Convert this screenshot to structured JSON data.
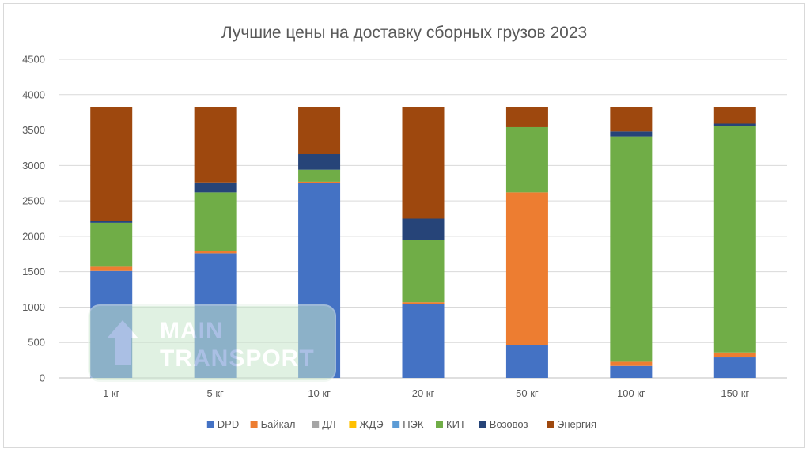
{
  "chart_data": {
    "type": "bar",
    "stacked": true,
    "title": "Лучшие цены на доставку сборных грузов 2023",
    "xlabel": "",
    "ylabel": "",
    "ylim": [
      0,
      4500
    ],
    "y_ticks": [
      0,
      500,
      1000,
      1500,
      2000,
      2500,
      3000,
      3500,
      4000,
      4500
    ],
    "categories": [
      "1 кг",
      "5 кг",
      "10 кг",
      "20 кг",
      "50 кг",
      "100 кг",
      "150 кг"
    ],
    "grid": true,
    "legend_position": "bottom",
    "series": [
      {
        "name": "DPD",
        "color": "#4472c4",
        "values": [
          1510,
          1760,
          2750,
          1040,
          460,
          170,
          290
        ]
      },
      {
        "name": "Байкал",
        "color": "#ed7d31",
        "values": [
          60,
          30,
          20,
          30,
          2160,
          60,
          70
        ]
      },
      {
        "name": "ДЛ",
        "color": "#a5a5a5",
        "values": [
          0,
          0,
          0,
          0,
          0,
          0,
          0
        ]
      },
      {
        "name": "ЖДЭ",
        "color": "#ffc000",
        "values": [
          0,
          0,
          0,
          0,
          0,
          0,
          0
        ]
      },
      {
        "name": "ПЭК",
        "color": "#5b9bd5",
        "values": [
          0,
          0,
          0,
          0,
          0,
          0,
          0
        ]
      },
      {
        "name": "КИТ",
        "color": "#70ad47",
        "values": [
          620,
          830,
          170,
          880,
          920,
          3180,
          3200
        ]
      },
      {
        "name": "Возовоз",
        "color": "#264478",
        "values": [
          30,
          140,
          220,
          300,
          0,
          70,
          30
        ]
      },
      {
        "name": "Энергия",
        "color": "#9e480e",
        "values": [
          1610,
          1070,
          670,
          1580,
          290,
          350,
          240
        ]
      }
    ]
  },
  "watermark": {
    "line1": "MAIN",
    "line2": "TRANSPORT",
    "icon": "up-arrow-icon"
  }
}
